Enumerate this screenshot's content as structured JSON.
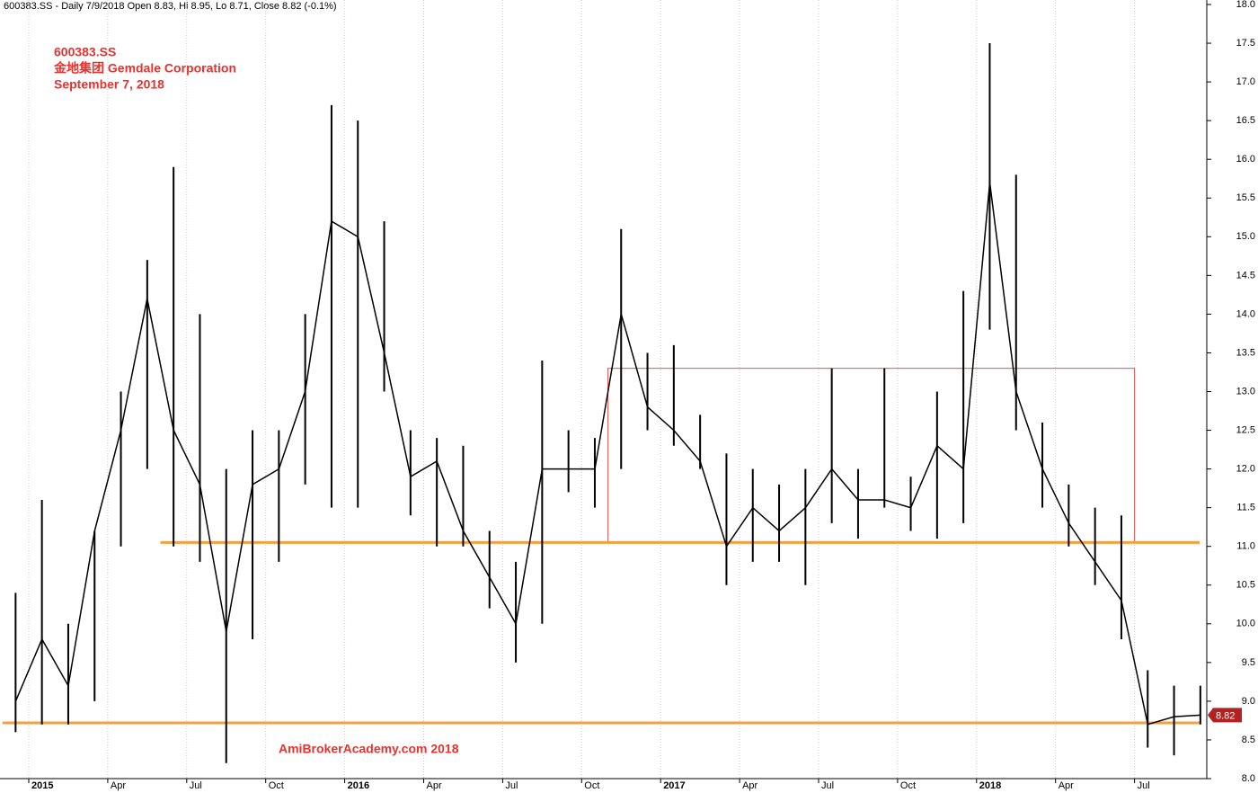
{
  "chart_data": {
    "type": "stock",
    "header": "600383.SS - Daily 7/9/2018 Open 8.83, Hi 8.95, Lo 8.71, Close 8.82 (-0.1%)",
    "annotation_lines": [
      "600383.SS",
      "金地集团   Gemdale Corporation",
      "September 7, 2018"
    ],
    "watermark": "AmiBrokerAcademy.com  2018",
    "x": [
      "2014-12",
      "2015-01",
      "2015-02",
      "2015-03",
      "2015-04",
      "2015-05",
      "2015-06",
      "2015-07",
      "2015-08",
      "2015-09",
      "2015-10",
      "2015-11",
      "2015-12",
      "2016-01",
      "2016-02",
      "2016-03",
      "2016-04",
      "2016-05",
      "2016-06",
      "2016-07",
      "2016-08",
      "2016-09",
      "2016-10",
      "2016-11",
      "2016-12",
      "2017-01",
      "2017-02",
      "2017-03",
      "2017-04",
      "2017-05",
      "2017-06",
      "2017-07",
      "2017-08",
      "2017-09",
      "2017-10",
      "2017-11",
      "2017-12",
      "2018-01",
      "2018-02",
      "2018-03",
      "2018-04",
      "2018-05",
      "2018-06",
      "2018-07",
      "2018-08",
      "2018-09"
    ],
    "high": [
      10.4,
      11.6,
      10.0,
      11.2,
      13.0,
      14.7,
      15.9,
      14.0,
      12.0,
      12.5,
      12.5,
      14.0,
      16.7,
      16.5,
      15.2,
      12.5,
      12.4,
      12.3,
      11.2,
      10.8,
      13.4,
      12.5,
      12.4,
      15.1,
      13.5,
      13.6,
      12.7,
      12.2,
      12.0,
      11.8,
      12.0,
      13.3,
      12.0,
      13.3,
      11.9,
      13.0,
      14.3,
      17.5,
      15.8,
      12.6,
      11.8,
      11.5,
      11.4,
      9.4,
      9.2,
      9.2
    ],
    "low": [
      8.6,
      8.7,
      8.7,
      9.0,
      11.0,
      12.0,
      11.0,
      10.8,
      8.2,
      9.8,
      10.8,
      11.8,
      11.5,
      11.5,
      13.0,
      11.4,
      11.0,
      11.0,
      10.2,
      9.5,
      10.0,
      11.7,
      11.5,
      12.0,
      12.5,
      12.3,
      12.0,
      10.5,
      10.8,
      10.8,
      10.5,
      11.3,
      11.1,
      11.5,
      11.2,
      11.1,
      11.3,
      13.8,
      12.5,
      11.5,
      11.0,
      10.5,
      9.8,
      8.4,
      8.3,
      8.7
    ],
    "close": [
      9.0,
      9.8,
      9.2,
      11.2,
      12.5,
      14.2,
      12.5,
      11.8,
      9.9,
      11.8,
      12.0,
      13.0,
      15.2,
      15.0,
      13.5,
      11.9,
      12.1,
      11.2,
      10.6,
      10.0,
      12.0,
      12.0,
      12.0,
      14.0,
      12.8,
      12.5,
      12.1,
      11.0,
      11.5,
      11.2,
      11.5,
      12.0,
      11.6,
      11.6,
      11.5,
      12.3,
      12.0,
      15.7,
      13.0,
      12.0,
      11.3,
      10.8,
      10.3,
      8.7,
      8.8,
      8.82
    ],
    "color": "#000000",
    "last_value": 8.82,
    "last_value_color": "#b22222",
    "ylim": [
      8.0,
      18.0
    ],
    "yticks": [
      {
        "value": 8,
        "label": "8.0"
      },
      8.5,
      {
        "value": 9,
        "label": "9.0"
      },
      9.5,
      {
        "value": 10,
        "label": "10.0"
      },
      10.5,
      {
        "value": 11,
        "label": "11.0"
      },
      11.5,
      {
        "value": 12,
        "label": "12.0"
      },
      12.5,
      {
        "value": 13,
        "label": "13.0"
      },
      13.5,
      {
        "value": 14,
        "label": "14.0"
      },
      14.5,
      {
        "value": 15,
        "label": "15.0"
      },
      15.5,
      {
        "value": 16,
        "label": "16.0"
      },
      16.5,
      {
        "value": 17,
        "label": "17.0"
      },
      17.5,
      {
        "value": 18,
        "label": "18.0"
      }
    ],
    "xticks": [
      {
        "value": "2015-01",
        "label": "2015"
      },
      {
        "value": "2015-04",
        "label": "Apr"
      },
      {
        "value": "2015-07",
        "label": "Jul"
      },
      {
        "value": "2015-10",
        "label": "Oct"
      },
      {
        "value": "2016-01",
        "label": "2016"
      },
      {
        "value": "2016-04",
        "label": "Apr"
      },
      {
        "value": "2016-07",
        "label": "Jul"
      },
      {
        "value": "2016-10",
        "label": "Oct"
      },
      {
        "value": "2017-01",
        "label": "2017"
      },
      {
        "value": "2017-04",
        "label": "Apr"
      },
      {
        "value": "2017-07",
        "label": "Jul"
      },
      {
        "value": "2017-10",
        "label": "Oct"
      },
      {
        "value": "2018-01",
        "label": "2018"
      },
      {
        "value": "2018-04",
        "label": "Apr"
      },
      {
        "value": "2018-07",
        "label": "Jul"
      }
    ],
    "grid": "x",
    "hlines": [
      {
        "value": 11.05,
        "from": "2015-06",
        "to": "2018-09",
        "color": "#f4a040"
      },
      {
        "value": 8.72,
        "from": "2014-12",
        "to": "2018-09",
        "color": "#f4a040"
      }
    ],
    "box": {
      "ylim": [
        11.05,
        13.3
      ],
      "from": "2016-11",
      "to": "2018-07",
      "color": "#e05050"
    }
  }
}
